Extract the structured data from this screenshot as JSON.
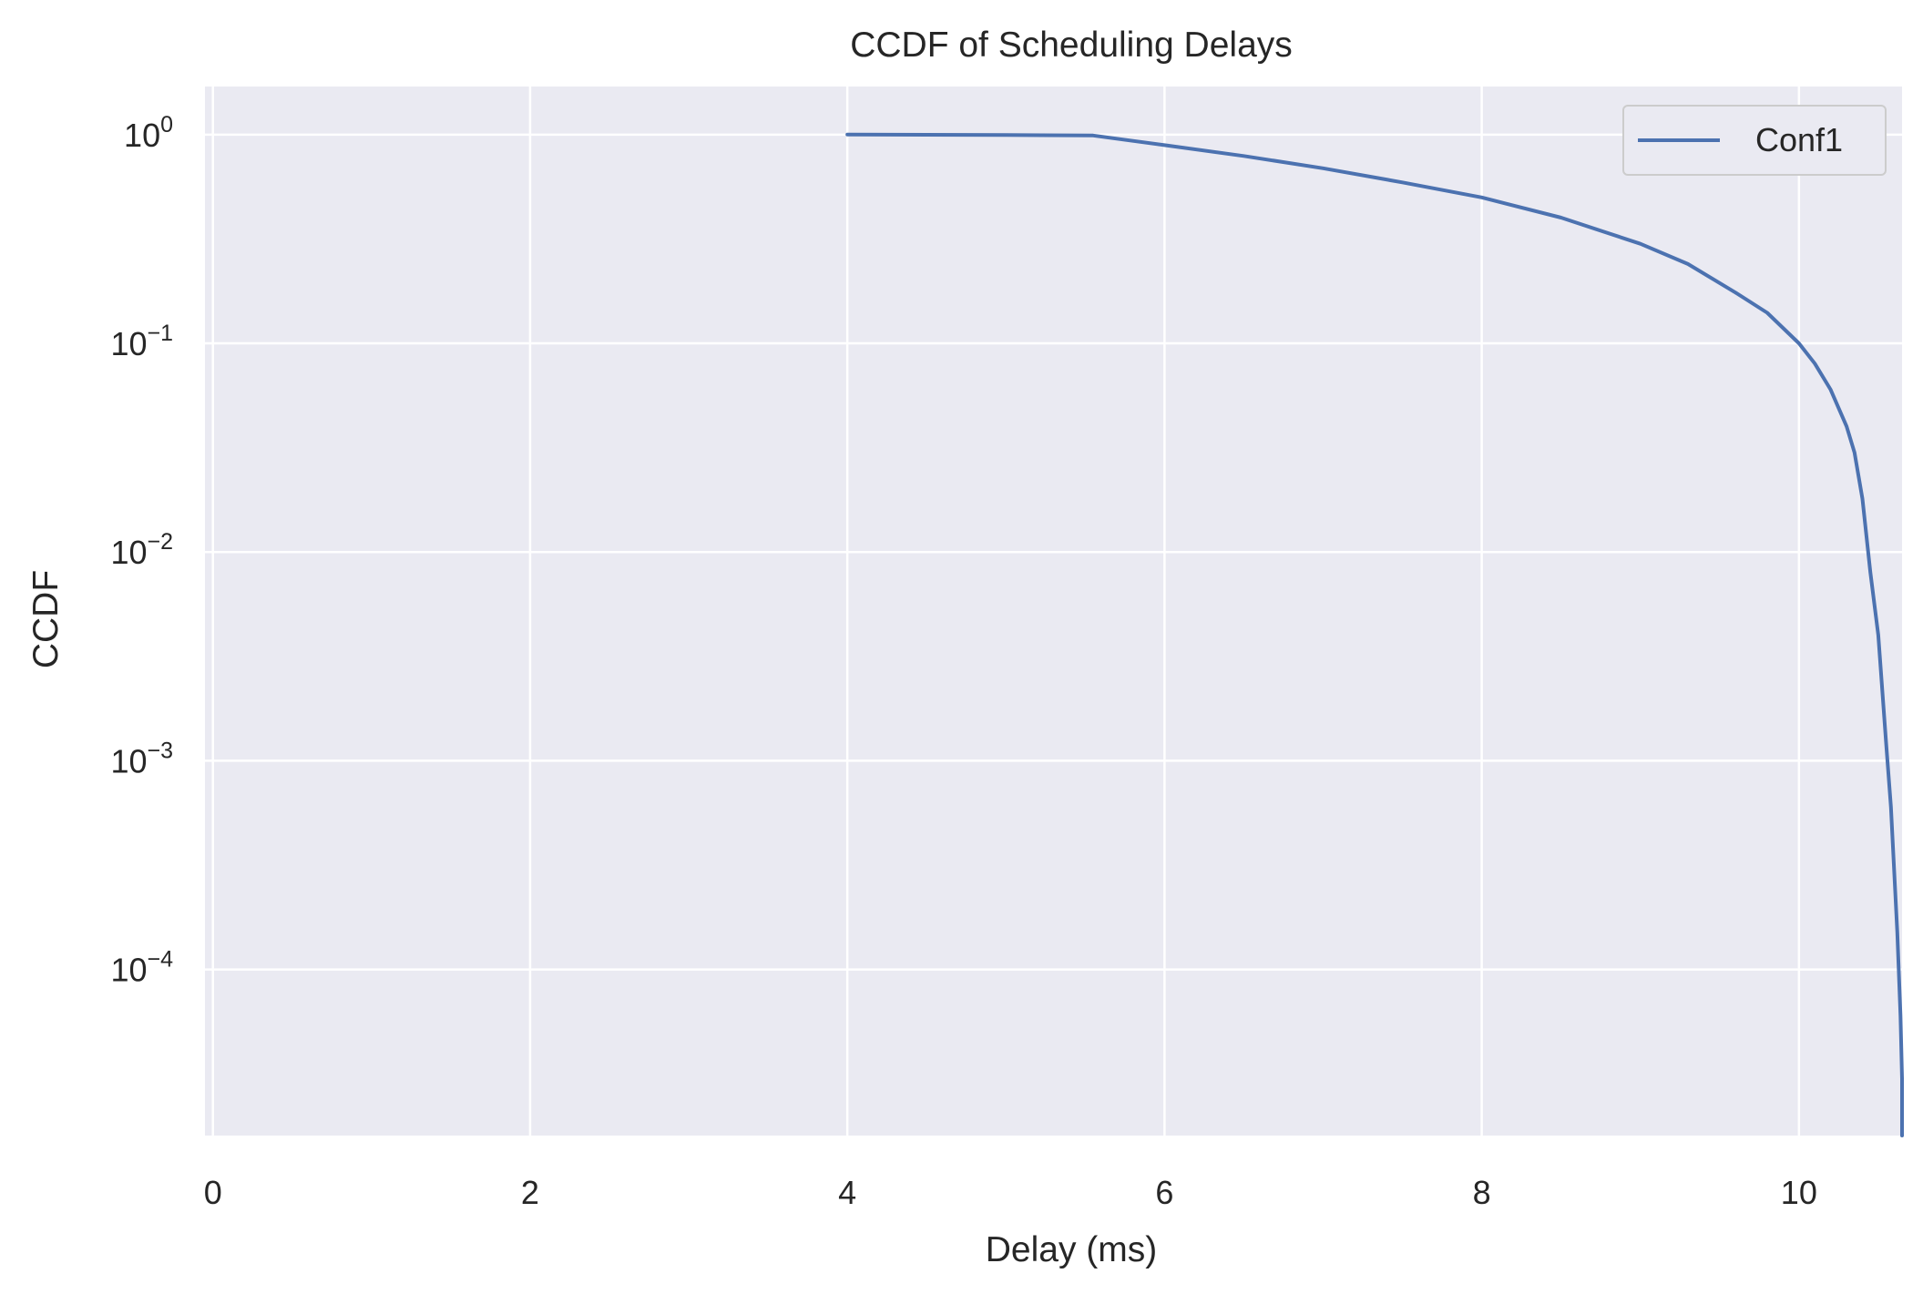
{
  "chart_data": {
    "type": "line",
    "title": "CCDF of Scheduling Delays",
    "xlabel": "Delay (ms)",
    "ylabel": "CCDF",
    "xlim": [
      -0.05,
      10.65
    ],
    "ylim": [
      1.6e-05,
      1.7
    ],
    "yscale": "log",
    "grid": true,
    "legend_position": "top-right",
    "x_ticks": [
      0,
      2,
      4,
      6,
      8,
      10
    ],
    "x_tick_labels": [
      "0",
      "2",
      "4",
      "6",
      "8",
      "10"
    ],
    "y_ticks": [
      1,
      0.1,
      0.01,
      0.001,
      0.0001
    ],
    "y_tick_labels": [
      {
        "base": "10",
        "exp": "0"
      },
      {
        "base": "10",
        "exp": "−1"
      },
      {
        "base": "10",
        "exp": "−2"
      },
      {
        "base": "10",
        "exp": "−3"
      },
      {
        "base": "10",
        "exp": "−4"
      }
    ],
    "series": [
      {
        "name": "Conf1",
        "color": "#4c72b0",
        "x": [
          4.0,
          5.0,
          5.55,
          6.0,
          6.5,
          7.0,
          7.5,
          8.0,
          8.5,
          9.0,
          9.3,
          9.6,
          9.8,
          10.0,
          10.1,
          10.2,
          10.3,
          10.35,
          10.4,
          10.45,
          10.5,
          10.55,
          10.58,
          10.6,
          10.62,
          10.64,
          10.65,
          10.65
        ],
        "y": [
          1.0,
          0.995,
          0.99,
          0.89,
          0.79,
          0.69,
          0.59,
          0.5,
          0.4,
          0.3,
          0.24,
          0.175,
          0.14,
          0.1,
          0.08,
          0.06,
          0.04,
          0.03,
          0.018,
          0.008,
          0.004,
          0.0012,
          0.0006,
          0.0003,
          0.00015,
          6e-05,
          3e-05,
          1.6e-05
        ]
      }
    ]
  },
  "colors": {
    "plot_background": "#eaeaf2",
    "grid": "#ffffff",
    "text": "#262626"
  }
}
